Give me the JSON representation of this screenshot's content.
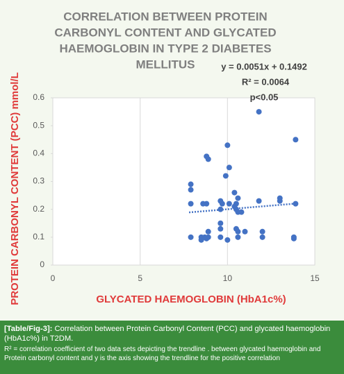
{
  "chart_data": {
    "type": "scatter",
    "title": [
      "CORRELATION BETWEEN PROTEIN",
      "CARBONYL CONTENT AND GLYCATED",
      "HAEMOGLOBIN IN TYPE 2 DIABETES",
      "MELLITUS"
    ],
    "annotations": [
      "y = 0.0051x + 0.1492",
      "R² = 0.0064",
      "p<0.05"
    ],
    "x_label": "GLYCATED HAEMOGLOBIN (HbA1c%)",
    "y_label": "PROTEIN CARBONYL CONTENT (PCC) mmol/L",
    "color": "#4472c4",
    "grid": true,
    "xlim": [
      0,
      15
    ],
    "xticks": [
      0,
      5,
      10,
      15
    ],
    "ylim": [
      0,
      0.6
    ],
    "yticks": [
      0,
      0.1,
      0.2,
      0.3,
      0.4,
      0.5,
      0.6
    ],
    "x": [
      7.9,
      7.9,
      7.9,
      7.9,
      8.5,
      8.5,
      8.6,
      8.7,
      8.8,
      8.8,
      8.8,
      8.9,
      8.9,
      8.9,
      9.6,
      9.6,
      9.6,
      9.6,
      9.6,
      9.7,
      9.9,
      10.0,
      10.0,
      10.1,
      10.1,
      10.4,
      10.4,
      10.5,
      10.5,
      10.5,
      10.6,
      10.6,
      10.6,
      10.6,
      10.8,
      11.0,
      11.8,
      11.8,
      12.0,
      12.0,
      13.0,
      13.0,
      13.8,
      13.8,
      13.9,
      13.9
    ],
    "values": [
      0.29,
      0.27,
      0.22,
      0.1,
      0.1,
      0.09,
      0.22,
      0.1,
      0.39,
      0.22,
      0.095,
      0.38,
      0.12,
      0.1,
      0.23,
      0.2,
      0.15,
      0.13,
      0.1,
      0.22,
      0.32,
      0.43,
      0.09,
      0.35,
      0.22,
      0.21,
      0.26,
      0.22,
      0.2,
      0.13,
      0.19,
      0.24,
      0.12,
      0.1,
      0.19,
      0.12,
      0.55,
      0.23,
      0.12,
      0.1,
      0.24,
      0.23,
      0.1,
      0.095,
      0.45,
      0.22
    ],
    "trendline": {
      "x": [
        7.8,
        14
      ],
      "values": [
        0.189,
        0.221
      ]
    }
  },
  "caption": {
    "label": "[Table/Fig-3]:",
    "text": "Correlation between Protein Carbonyl Content (PCC) and glycated haemoglobin (HbA1c%) in T2DM.",
    "note": "R² = correlation coefficient of two data sets depicting the trendline . between glycated haemoglobin and Protein carbonyl content and y is the axis showing the trendline for the positive correlation"
  }
}
